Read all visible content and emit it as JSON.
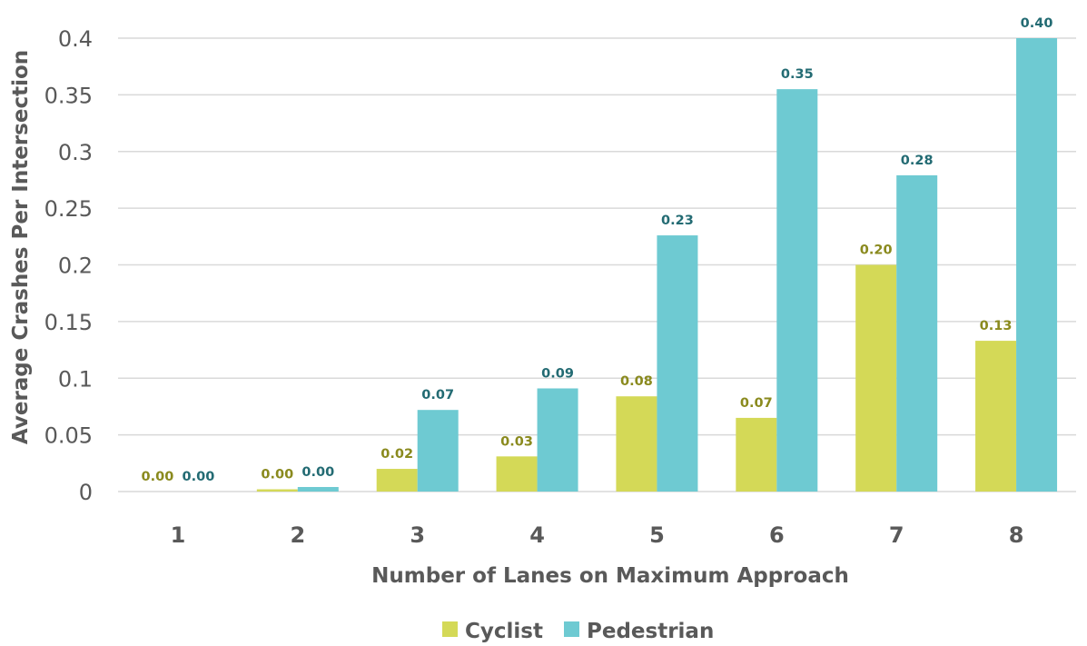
{
  "chart_data": {
    "type": "bar",
    "title": "",
    "xlabel": "Number of Lanes on Maximum Approach",
    "ylabel": "Average Crashes Per Intersection",
    "categories": [
      "1",
      "2",
      "3",
      "4",
      "5",
      "6",
      "7",
      "8"
    ],
    "ylim": [
      0,
      0.4
    ],
    "yticks": [
      "0",
      "0.05",
      "0.1",
      "0.15",
      "0.2",
      "0.25",
      "0.3",
      "0.35",
      "0.4"
    ],
    "grid": true,
    "legend_position": "bottom",
    "series": [
      {
        "name": "Cyclist",
        "color": "#d4d957",
        "label_color": "#8a8a1e",
        "values": [
          0.0,
          0.002,
          0.02,
          0.031,
          0.084,
          0.065,
          0.2,
          0.133
        ],
        "labels": [
          "0.00",
          "0.00",
          "0.02",
          "0.03",
          "0.08",
          "0.07",
          "0.20",
          "0.13"
        ]
      },
      {
        "name": "Pedestrian",
        "color": "#6ecad2",
        "label_color": "#236b73",
        "values": [
          0.0,
          0.004,
          0.072,
          0.091,
          0.226,
          0.355,
          0.279,
          0.4
        ],
        "labels": [
          "0.00",
          "0.00",
          "0.07",
          "0.09",
          "0.23",
          "0.35",
          "0.28",
          "0.40"
        ]
      }
    ]
  }
}
